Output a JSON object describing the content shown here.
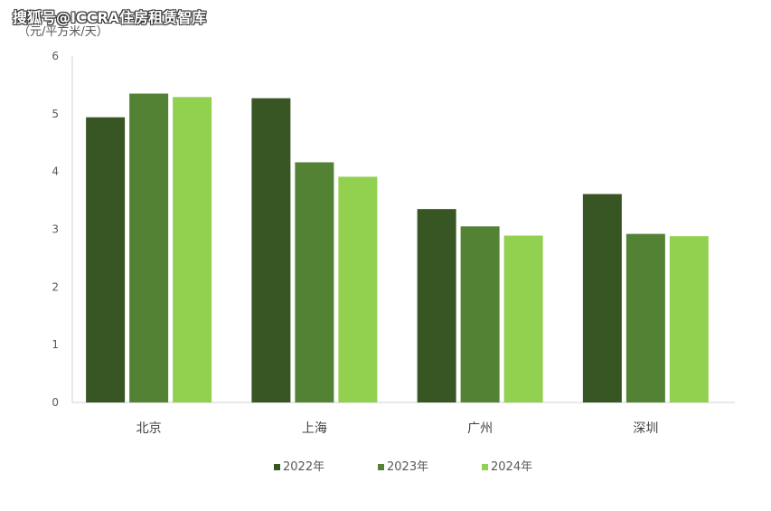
{
  "watermark": "搜狐号@ICCRA住房租赁智库",
  "chart_data": {
    "type": "bar",
    "ylabel": "（元/平方米/天）",
    "categories": [
      "北京",
      "上海",
      "广州",
      "深圳"
    ],
    "series": [
      {
        "name": "2022年",
        "color": "#375623",
        "values": [
          4.94,
          5.27,
          3.35,
          3.61
        ]
      },
      {
        "name": "2023年",
        "color": "#548235",
        "values": [
          5.35,
          4.16,
          3.05,
          2.92
        ]
      },
      {
        "name": "2024年",
        "color": "#92D050",
        "values": [
          5.29,
          3.91,
          2.89,
          2.88
        ]
      }
    ],
    "ylim": [
      0,
      6
    ],
    "yticks": [
      "0",
      "1",
      "2",
      "3",
      "4",
      "5",
      "6"
    ],
    "grid": false,
    "legend_position": "bottom"
  }
}
